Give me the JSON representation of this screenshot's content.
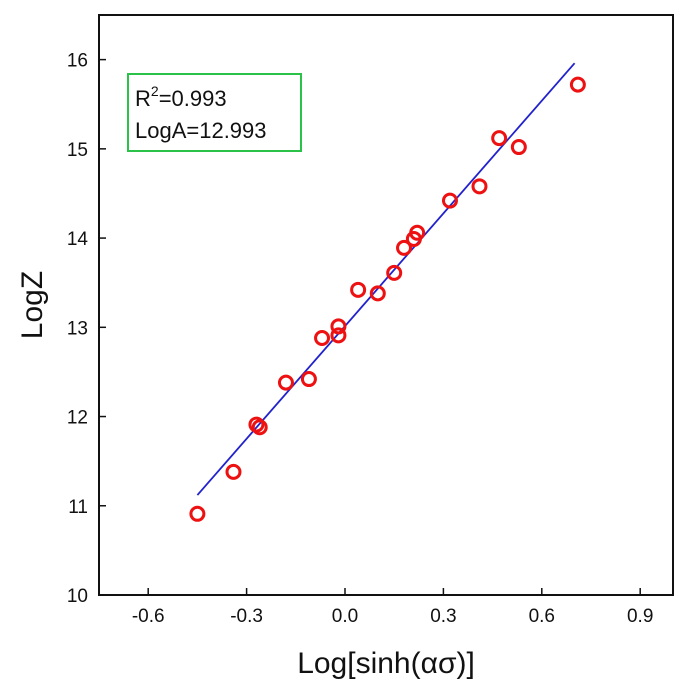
{
  "chart_data": {
    "type": "scatter",
    "title": "",
    "xlabel": "Log[sinh(ασ)]",
    "ylabel": "LogZ",
    "xlim": [
      -0.75,
      1.0
    ],
    "ylim": [
      10,
      16.5
    ],
    "x_ticks": [
      -0.6,
      -0.3,
      0.0,
      0.3,
      0.6,
      0.9
    ],
    "x_tick_labels": [
      "-0.6",
      "-0.3",
      "0.0",
      "0.3",
      "0.6",
      "0.9"
    ],
    "y_ticks": [
      10,
      11,
      12,
      13,
      14,
      15,
      16
    ],
    "y_tick_labels": [
      "10",
      "11",
      "12",
      "13",
      "14",
      "15",
      "16"
    ],
    "grid": false,
    "annotation": {
      "r2_prefix": "R",
      "r2_sup": "2",
      "r2_value": "=0.993",
      "loga": "LogA=12.993",
      "border_color": "#2bc24a"
    },
    "points": {
      "color": "#ee1111",
      "x": [
        -0.45,
        -0.34,
        -0.27,
        -0.26,
        -0.18,
        -0.11,
        -0.07,
        -0.02,
        -0.02,
        0.04,
        0.1,
        0.15,
        0.18,
        0.21,
        0.22,
        0.32,
        0.41,
        0.47,
        0.53,
        0.71
      ],
      "y": [
        10.91,
        11.38,
        11.91,
        11.88,
        12.38,
        12.42,
        12.88,
        12.91,
        13.01,
        13.42,
        13.38,
        13.61,
        13.89,
        13.99,
        14.06,
        14.42,
        14.58,
        15.12,
        15.02,
        15.72
      ]
    },
    "fit_line": {
      "color": "#2222cc",
      "x": [
        -0.45,
        0.7
      ],
      "y": [
        11.12,
        15.96
      ]
    }
  }
}
